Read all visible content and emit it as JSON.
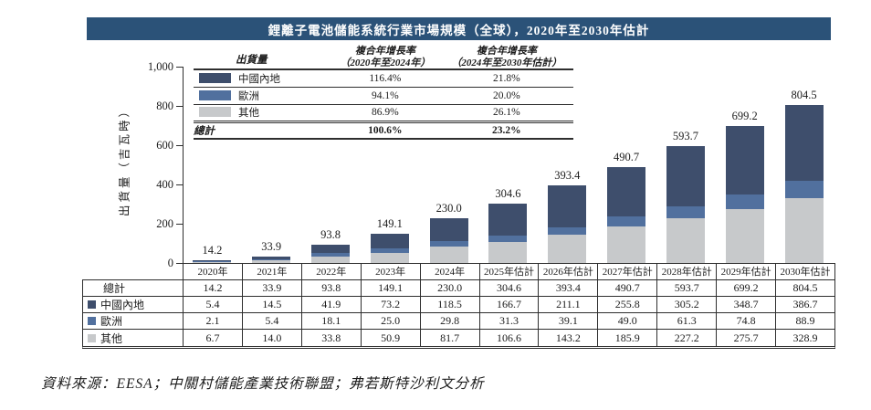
{
  "title": "鋰離子電池儲能系統行業市場規模（全球），2020年至2030年估計",
  "source": "資料來源：EESA；中關村儲能產業技術聯盟；弗若斯特沙利文分析",
  "colors": {
    "title_bar": "#2B5278",
    "china": "#3E4E6C",
    "europe": "#51709E",
    "other": "#C7C9CB"
  },
  "legend": {
    "header_shipments": "出貨量",
    "header_cagr1_lines": [
      "複合年增長率",
      "（2020年至2024年）"
    ],
    "header_cagr2_lines": [
      "複合年增長率",
      "（2024年至2030年估計）"
    ],
    "rows": [
      {
        "key": "china",
        "label": "中國內地",
        "cagr1": "116.4%",
        "cagr2": "21.8%",
        "total": false
      },
      {
        "key": "europe",
        "label": "歐洲",
        "cagr1": "94.1%",
        "cagr2": "20.0%",
        "total": false
      },
      {
        "key": "other",
        "label": "其他",
        "cagr1": "86.9%",
        "cagr2": "26.1%",
        "total": false
      },
      {
        "key": null,
        "label": "總計",
        "cagr1": "100.6%",
        "cagr2": "23.2%",
        "total": true
      }
    ]
  },
  "chart_data": {
    "type": "bar",
    "stacked": true,
    "title": "鋰離子電池儲能系統行業市場規模（全球），2020年至2030年估計",
    "categories": [
      "2020年",
      "2021年",
      "2022年",
      "2023年",
      "2024年",
      "2025年估計",
      "2026年估計",
      "2027年估計",
      "2028年估計",
      "2029年估計",
      "2030年估計"
    ],
    "series": [
      {
        "name": "中國內地",
        "key": "china",
        "values": [
          5.4,
          14.5,
          41.9,
          73.2,
          118.5,
          166.7,
          211.1,
          255.8,
          305.2,
          348.7,
          386.7
        ]
      },
      {
        "name": "歐洲",
        "key": "europe",
        "values": [
          2.1,
          5.4,
          18.1,
          25.0,
          29.8,
          31.3,
          39.1,
          49.0,
          61.3,
          74.8,
          88.9
        ]
      },
      {
        "name": "其他",
        "key": "other",
        "values": [
          6.7,
          14.0,
          33.8,
          50.9,
          81.7,
          106.6,
          143.2,
          185.9,
          227.2,
          275.7,
          328.9
        ]
      }
    ],
    "totals": [
      14.2,
      33.9,
      93.8,
      149.1,
      230.0,
      304.6,
      393.4,
      490.7,
      593.7,
      699.2,
      804.5
    ],
    "total_labels": [
      "14.2",
      "33.9",
      "93.8",
      "149.1",
      "230.0",
      "304.6",
      "393.4",
      "490.7",
      "593.7",
      "699.2",
      "804.5"
    ],
    "xlabel": "",
    "ylabel": "出貨量（吉瓦時）",
    "ylim": [
      0,
      1000
    ],
    "ytick_values": [
      0,
      200,
      400,
      600,
      800,
      1000
    ],
    "ytick_labels": [
      "0",
      "200",
      "400",
      "600",
      "800",
      "1,000"
    ],
    "grid": false,
    "legend_position": "top-left-table"
  },
  "table": {
    "row_headers": [
      {
        "key": null,
        "label": "總計"
      },
      {
        "key": "china",
        "label": "中國內地"
      },
      {
        "key": "europe",
        "label": "歐洲"
      },
      {
        "key": "other",
        "label": "其他"
      }
    ],
    "rows": [
      [
        "14.2",
        "33.9",
        "93.8",
        "149.1",
        "230.0",
        "304.6",
        "393.4",
        "490.7",
        "593.7",
        "699.2",
        "804.5"
      ],
      [
        "5.4",
        "14.5",
        "41.9",
        "73.2",
        "118.5",
        "166.7",
        "211.1",
        "255.8",
        "305.2",
        "348.7",
        "386.7"
      ],
      [
        "2.1",
        "5.4",
        "18.1",
        "25.0",
        "29.8",
        "31.3",
        "39.1",
        "49.0",
        "61.3",
        "74.8",
        "88.9"
      ],
      [
        "6.7",
        "14.0",
        "33.8",
        "50.9",
        "81.7",
        "106.6",
        "143.2",
        "185.9",
        "227.2",
        "275.7",
        "328.9"
      ]
    ]
  }
}
